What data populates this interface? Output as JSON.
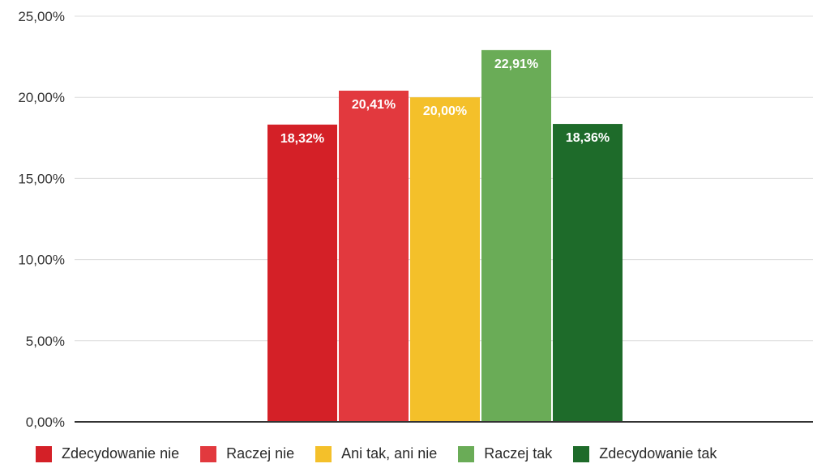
{
  "chart_data": {
    "type": "bar",
    "categories": [
      "Zdecydowanie nie",
      "Raczej nie",
      "Ani tak, ani nie",
      "Raczej tak",
      "Zdecydowanie tak"
    ],
    "values": [
      18.32,
      20.41,
      20.0,
      22.91,
      18.36
    ],
    "data_labels": [
      "18,32%",
      "20,41%",
      "20,00%",
      "22,91%",
      "18,36%"
    ],
    "colors": [
      "#d42027",
      "#e2393e",
      "#f4c02a",
      "#6aac57",
      "#1e6b2a"
    ],
    "ylim": [
      0,
      25
    ],
    "y_ticks": [
      0,
      5,
      10,
      15,
      20,
      25
    ],
    "y_tick_labels": [
      "0,00%",
      "5,00%",
      "10,00%",
      "15,00%",
      "20,00%",
      "25,00%"
    ],
    "grid": true,
    "legend_position": "bottom",
    "title": "",
    "xlabel": "",
    "ylabel": ""
  }
}
